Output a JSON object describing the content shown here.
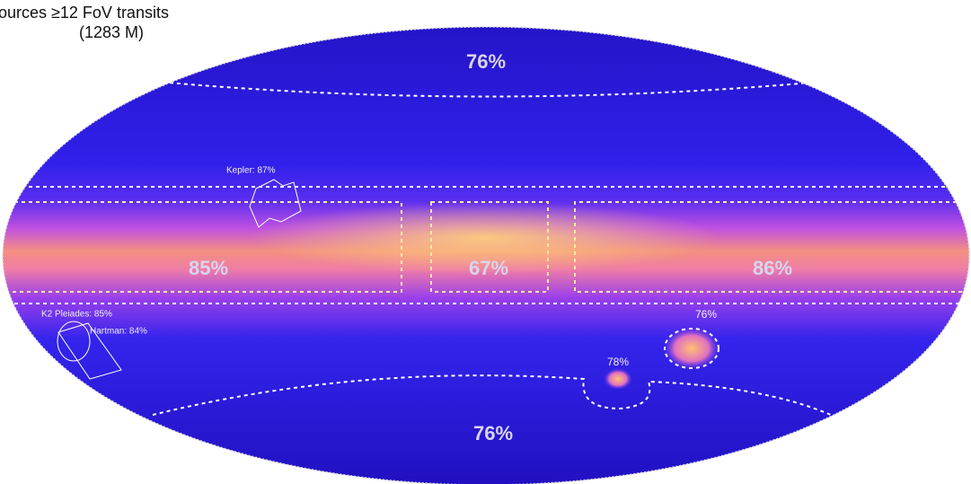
{
  "header": {
    "line1": "ources ≥12 FoV transits",
    "line2": "(1283 M)"
  },
  "regions": [
    {
      "label": "76%"
    },
    {
      "label": "85%"
    },
    {
      "label": "67%"
    },
    {
      "label": "86%"
    },
    {
      "label": "76%"
    },
    {
      "label": "76%"
    },
    {
      "label": "78%"
    }
  ],
  "fields": [
    {
      "label": "Kepler: 87%"
    },
    {
      "label": "K2 Pleiades: 85%"
    },
    {
      "label": "Hartman: 84%"
    }
  ]
}
